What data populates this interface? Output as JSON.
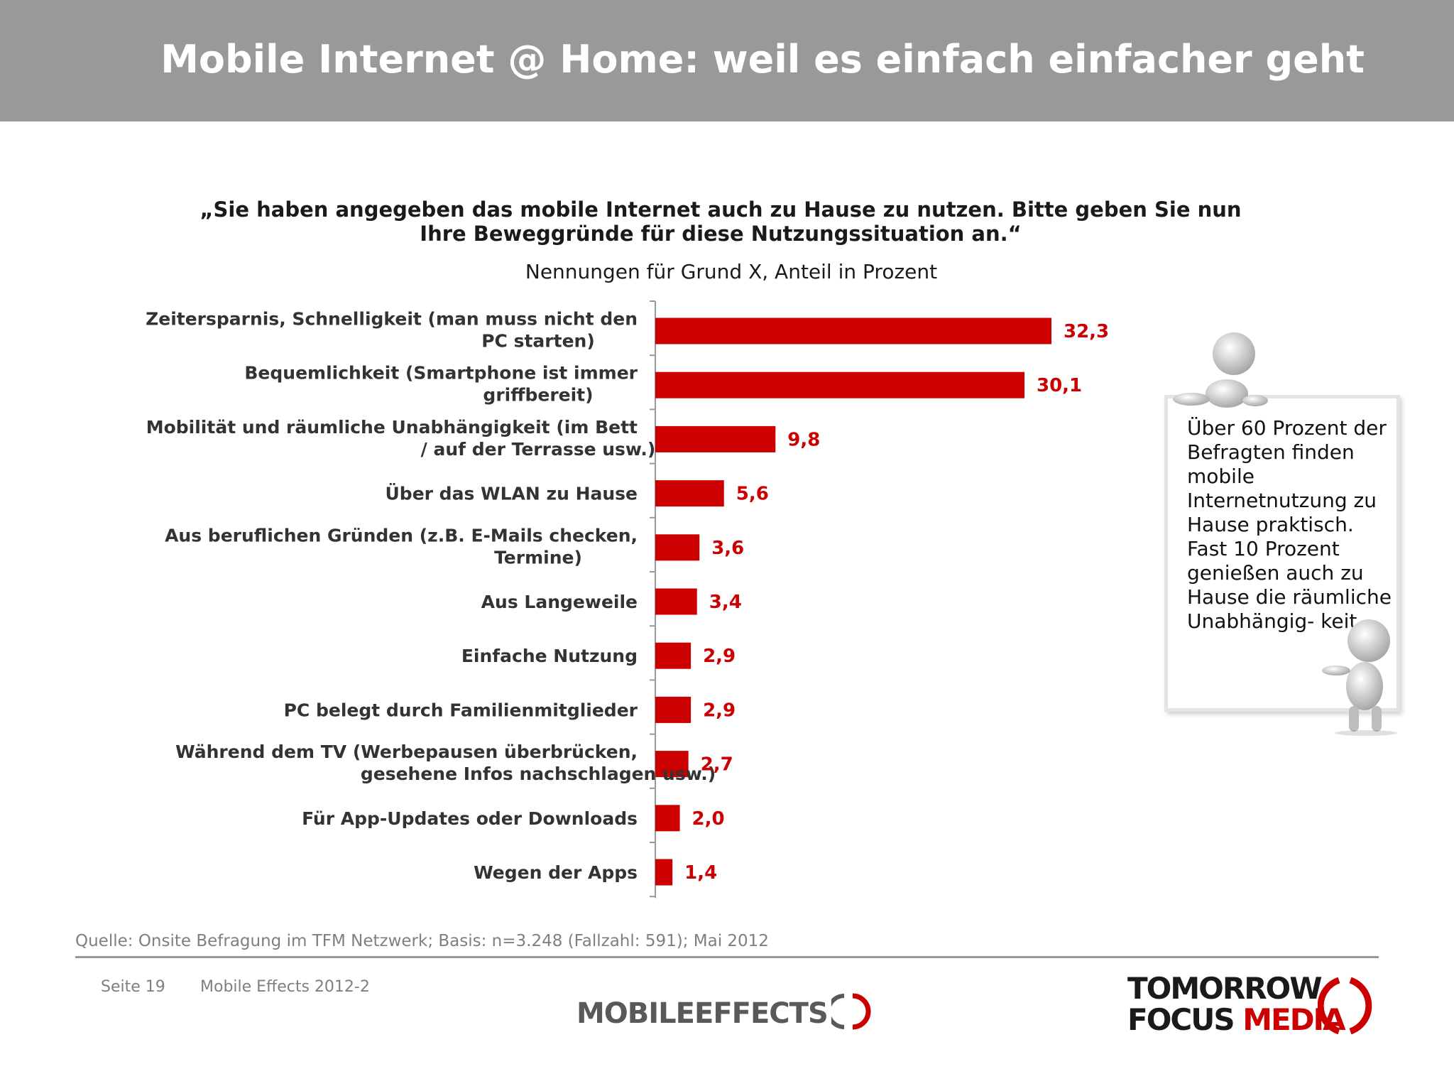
{
  "header": {
    "title": "Mobile Internet @ Home: weil es einfach einfacher geht",
    "background_color": "#999999"
  },
  "question": {
    "line1": "„Sie haben angegeben das mobile Internet auch zu Hause zu nutzen. Bitte geben Sie nun",
    "line2": "Ihre Beweggründe für diese Nutzungssituation an.“"
  },
  "subtitle": "Nennungen für Grund X, Anteil in Prozent",
  "chart_data": {
    "type": "bar",
    "orientation": "horizontal",
    "bar_color": "#cc0000",
    "value_label_color": "#cc0000",
    "xlim": [
      0,
      32.3
    ],
    "categories": [
      [
        "Zeitersparnis, Schnelligkeit (man muss nicht den",
        "PC starten)"
      ],
      [
        "Bequemlichkeit (Smartphone ist immer",
        "griffbereit)"
      ],
      [
        "Mobilität und räumliche Unabhängigkeit (im Bett",
        "/ auf der Terrasse usw.)"
      ],
      [
        "Über das WLAN zu Hause"
      ],
      [
        "Aus beruflichen Gründen (z.B. E-Mails checken,",
        "Termine)"
      ],
      [
        "Aus Langeweile"
      ],
      [
        "Einfache Nutzung"
      ],
      [
        "PC belegt durch Familienmitglieder"
      ],
      [
        "Während dem TV (Werbepausen überbrücken,",
        "gesehene Infos nachschlagen usw.)"
      ],
      [
        "Für App-Updates oder Downloads"
      ],
      [
        "Wegen der Apps"
      ]
    ],
    "values": [
      32.3,
      30.1,
      9.8,
      5.6,
      3.6,
      3.4,
      2.9,
      2.9,
      2.7,
      2.0,
      1.4
    ],
    "value_labels": [
      "32,3",
      "30,1",
      "9,8",
      "5,6",
      "3,6",
      "3,4",
      "2,9",
      "2,9",
      "2,7",
      "2,0",
      "1,4"
    ]
  },
  "note": {
    "text": "Über 60 Prozent der Befragten finden mobile Internetnutzung zu Hause praktisch. Fast 10 Prozent genießen auch zu Hause die räumliche Unabhängig- keit."
  },
  "footer": {
    "source": "Quelle: Onsite Befragung im TFM Netzwerk; Basis: n=3.248 (Fallzahl: 591); Mai 2012",
    "page": "Seite 19",
    "study": "Mobile Effects 2012-2",
    "logo_mobile": "MOBILE",
    "logo_effects": "EFFECTS",
    "logo_tomorrow": "TOMORROW",
    "logo_focus": "FOCUS",
    "logo_media": "MEDIA"
  }
}
